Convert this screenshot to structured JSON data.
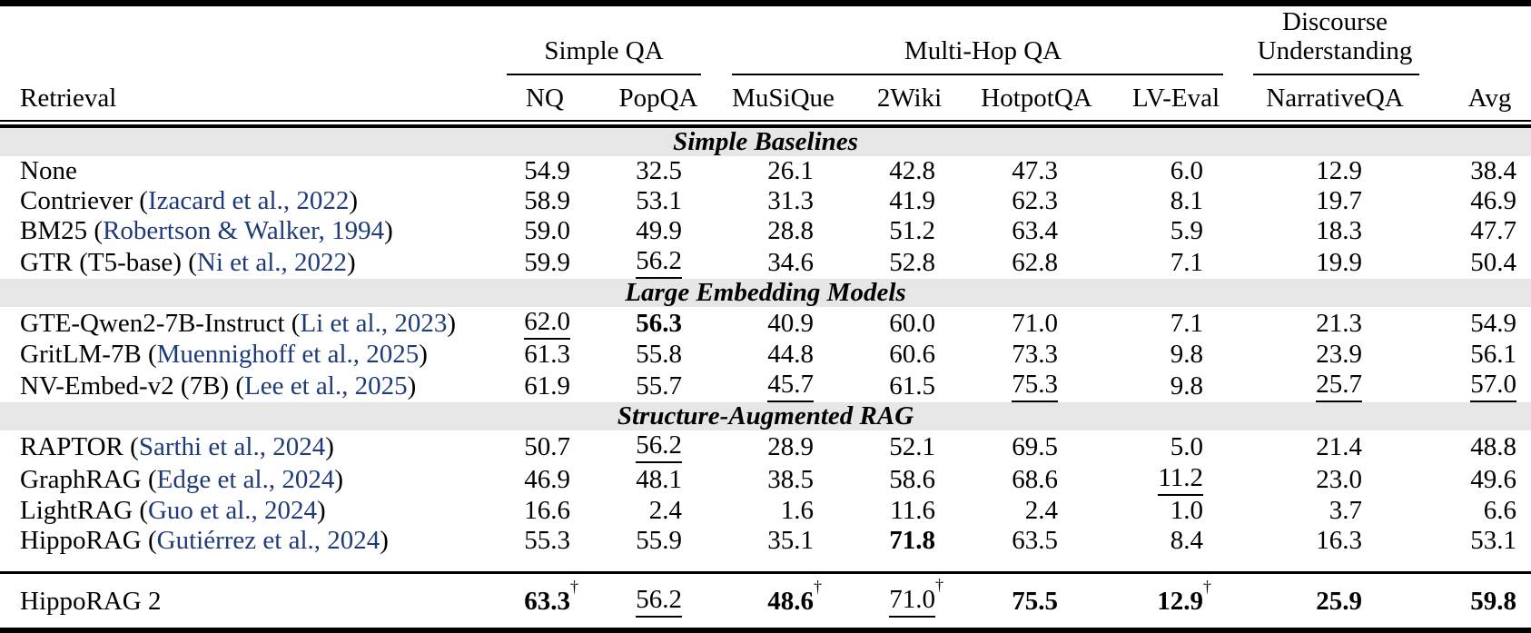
{
  "accent": {
    "citation_color": "#1e3a78",
    "section_band_color": "#e6e6e6",
    "rule_color": "#000000"
  },
  "dagger_symbol": "†",
  "table": {
    "row_header_label": "Retrieval",
    "groups": [
      {
        "label": "Simple QA",
        "span": 2
      },
      {
        "label": "Multi-Hop QA",
        "span": 4
      },
      {
        "label": "Discourse\nUnderstanding",
        "span": 1
      }
    ],
    "columns": [
      "NQ",
      "PopQA",
      "MuSiQue",
      "2Wiki",
      "HotpotQA",
      "LV-Eval",
      "NarrativeQA",
      "Avg"
    ],
    "sections": [
      {
        "title": "Simple Baselines",
        "rows": [
          {
            "name": "None",
            "cite": "",
            "values": [
              {
                "v": "54.9"
              },
              {
                "v": "32.5"
              },
              {
                "v": "26.1"
              },
              {
                "v": "42.8"
              },
              {
                "v": "47.3"
              },
              {
                "v": "6.0"
              },
              {
                "v": "12.9"
              },
              {
                "v": "38.4"
              }
            ]
          },
          {
            "name": "Contriever",
            "cite": "Izacard et al., 2022",
            "values": [
              {
                "v": "58.9"
              },
              {
                "v": "53.1"
              },
              {
                "v": "31.3"
              },
              {
                "v": "41.9"
              },
              {
                "v": "62.3"
              },
              {
                "v": "8.1"
              },
              {
                "v": "19.7"
              },
              {
                "v": "46.9"
              }
            ]
          },
          {
            "name": "BM25",
            "cite": "Robertson & Walker, 1994",
            "values": [
              {
                "v": "59.0"
              },
              {
                "v": "49.9"
              },
              {
                "v": "28.8"
              },
              {
                "v": "51.2"
              },
              {
                "v": "63.4"
              },
              {
                "v": "5.9"
              },
              {
                "v": "18.3"
              },
              {
                "v": "47.7"
              }
            ]
          },
          {
            "name": "GTR (T5-base)",
            "cite": "Ni et al., 2022",
            "values": [
              {
                "v": "59.9"
              },
              {
                "v": "56.2",
                "u": true
              },
              {
                "v": "34.6"
              },
              {
                "v": "52.8"
              },
              {
                "v": "62.8"
              },
              {
                "v": "7.1"
              },
              {
                "v": "19.9"
              },
              {
                "v": "50.4"
              }
            ]
          }
        ]
      },
      {
        "title": "Large Embedding Models",
        "rows": [
          {
            "name": "GTE-Qwen2-7B-Instruct",
            "cite": "Li et al., 2023",
            "values": [
              {
                "v": "62.0",
                "u": true
              },
              {
                "v": "56.3",
                "b": true
              },
              {
                "v": "40.9"
              },
              {
                "v": "60.0"
              },
              {
                "v": "71.0"
              },
              {
                "v": "7.1"
              },
              {
                "v": "21.3"
              },
              {
                "v": "54.9"
              }
            ]
          },
          {
            "name": "GritLM-7B",
            "cite": "Muennighoff et al., 2025",
            "values": [
              {
                "v": "61.3"
              },
              {
                "v": "55.8"
              },
              {
                "v": "44.8"
              },
              {
                "v": "60.6"
              },
              {
                "v": "73.3"
              },
              {
                "v": "9.8"
              },
              {
                "v": "23.9"
              },
              {
                "v": "56.1"
              }
            ]
          },
          {
            "name": "NV-Embed-v2 (7B)",
            "cite": "Lee et al., 2025",
            "values": [
              {
                "v": "61.9"
              },
              {
                "v": "55.7"
              },
              {
                "v": "45.7",
                "u": true
              },
              {
                "v": "61.5"
              },
              {
                "v": "75.3",
                "u": true
              },
              {
                "v": "9.8"
              },
              {
                "v": "25.7",
                "u": true
              },
              {
                "v": "57.0",
                "u": true
              }
            ]
          }
        ]
      },
      {
        "title": "Structure-Augmented RAG",
        "rows": [
          {
            "name": "RAPTOR",
            "cite": "Sarthi et al., 2024",
            "values": [
              {
                "v": "50.7"
              },
              {
                "v": "56.2",
                "u": true
              },
              {
                "v": "28.9"
              },
              {
                "v": "52.1"
              },
              {
                "v": "69.5"
              },
              {
                "v": "5.0"
              },
              {
                "v": "21.4"
              },
              {
                "v": "48.8"
              }
            ]
          },
          {
            "name": "GraphRAG",
            "cite": "Edge et al., 2024",
            "values": [
              {
                "v": "46.9"
              },
              {
                "v": "48.1"
              },
              {
                "v": "38.5"
              },
              {
                "v": "58.6"
              },
              {
                "v": "68.6"
              },
              {
                "v": "11.2",
                "u": true
              },
              {
                "v": "23.0"
              },
              {
                "v": "49.6"
              }
            ]
          },
          {
            "name": "LightRAG",
            "cite": "Guo et al., 2024",
            "values": [
              {
                "v": "16.6"
              },
              {
                "v": "2.4"
              },
              {
                "v": "1.6"
              },
              {
                "v": "11.6"
              },
              {
                "v": "2.4"
              },
              {
                "v": "1.0"
              },
              {
                "v": "3.7"
              },
              {
                "v": "6.6"
              }
            ]
          },
          {
            "name": "HippoRAG",
            "cite": "Gutiérrez et al., 2024",
            "values": [
              {
                "v": "55.3"
              },
              {
                "v": "55.9"
              },
              {
                "v": "35.1"
              },
              {
                "v": "71.8",
                "b": true
              },
              {
                "v": "63.5"
              },
              {
                "v": "8.4"
              },
              {
                "v": "16.3"
              },
              {
                "v": "53.1"
              }
            ]
          }
        ]
      }
    ],
    "final_row": {
      "name": "HippoRAG 2",
      "cite": "",
      "values": [
        {
          "v": "63.3",
          "b": true,
          "d": true
        },
        {
          "v": "56.2",
          "u": true
        },
        {
          "v": "48.6",
          "b": true,
          "d": true
        },
        {
          "v": "71.0",
          "u": true,
          "d": true
        },
        {
          "v": "75.5",
          "b": true
        },
        {
          "v": "12.9",
          "b": true,
          "d": true
        },
        {
          "v": "25.9",
          "b": true
        },
        {
          "v": "59.8",
          "b": true
        }
      ]
    }
  }
}
